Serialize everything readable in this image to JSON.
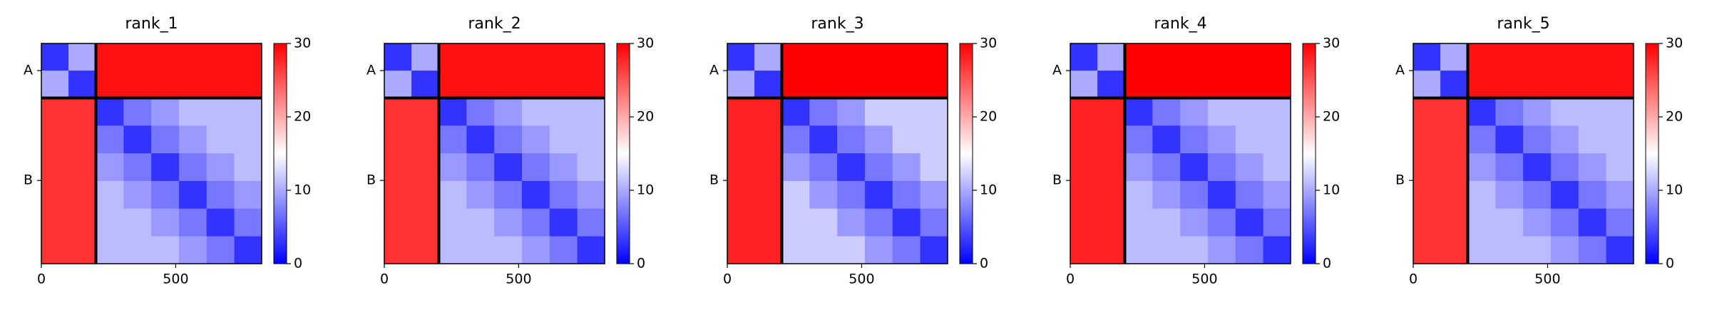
{
  "chart_data": [
    {
      "type": "heatmap",
      "title": "rank_1",
      "colormap": "bwr",
      "x_edges": [
        0,
        101,
        203,
        306,
        409,
        512,
        615,
        718,
        820
      ],
      "y_edges": [
        0,
        101,
        203,
        306,
        409,
        512,
        615,
        718,
        820
      ],
      "values": [
        [
          3,
          10,
          29,
          29,
          29,
          29,
          29,
          29
        ],
        [
          10,
          3,
          29,
          29,
          29,
          29,
          29,
          29
        ],
        [
          27,
          27,
          3,
          7,
          9,
          11,
          11,
          11
        ],
        [
          27,
          27,
          7,
          3,
          7,
          9,
          11,
          11
        ],
        [
          27,
          27,
          9,
          7,
          3,
          7,
          9,
          11
        ],
        [
          27,
          27,
          11,
          9,
          7,
          3,
          7,
          9
        ],
        [
          27,
          27,
          11,
          11,
          9,
          7,
          3,
          7
        ],
        [
          27,
          27,
          11,
          11,
          11,
          9,
          7,
          3
        ]
      ],
      "boundaries": [
        203
      ],
      "xlim": [
        0,
        820
      ],
      "xticks": [
        0,
        500
      ],
      "ylim": [
        820,
        0
      ],
      "yticks": [
        {
          "value": 101,
          "label": "A"
        },
        {
          "value": 510,
          "label": "B"
        }
      ],
      "clim": [
        0,
        30
      ],
      "cticks": [
        0,
        10,
        20,
        30
      ]
    },
    {
      "type": "heatmap",
      "title": "rank_2",
      "colormap": "bwr",
      "x_edges": [
        0,
        101,
        203,
        306,
        409,
        512,
        615,
        718,
        820
      ],
      "y_edges": [
        0,
        101,
        203,
        306,
        409,
        512,
        615,
        718,
        820
      ],
      "values": [
        [
          3,
          10,
          29,
          29,
          29,
          29,
          29,
          29
        ],
        [
          10,
          3,
          29,
          29,
          29,
          29,
          29,
          29
        ],
        [
          27,
          27,
          3,
          7,
          9,
          11,
          11,
          11
        ],
        [
          27,
          27,
          7,
          3,
          7,
          9,
          11,
          11
        ],
        [
          27,
          27,
          9,
          7,
          3,
          7,
          9,
          11
        ],
        [
          27,
          27,
          11,
          9,
          7,
          3,
          7,
          9
        ],
        [
          27,
          27,
          11,
          11,
          9,
          7,
          3,
          7
        ],
        [
          27,
          27,
          11,
          11,
          11,
          9,
          7,
          3
        ]
      ],
      "boundaries": [
        203
      ],
      "xlim": [
        0,
        820
      ],
      "xticks": [
        0,
        500
      ],
      "ylim": [
        820,
        0
      ],
      "yticks": [
        {
          "value": 101,
          "label": "A"
        },
        {
          "value": 510,
          "label": "B"
        }
      ],
      "clim": [
        0,
        30
      ],
      "cticks": [
        0,
        10,
        20,
        30
      ]
    },
    {
      "type": "heatmap",
      "title": "rank_3",
      "colormap": "bwr",
      "x_edges": [
        0,
        101,
        203,
        306,
        409,
        512,
        615,
        718,
        820
      ],
      "y_edges": [
        0,
        101,
        203,
        306,
        409,
        512,
        615,
        718,
        820
      ],
      "values": [
        [
          3,
          10,
          30,
          30,
          30,
          30,
          30,
          30
        ],
        [
          10,
          3,
          30,
          30,
          30,
          30,
          30,
          30
        ],
        [
          28,
          28,
          3,
          7,
          9,
          12,
          12,
          12
        ],
        [
          28,
          28,
          7,
          3,
          7,
          9,
          12,
          12
        ],
        [
          28,
          28,
          9,
          7,
          3,
          7,
          9,
          12
        ],
        [
          28,
          28,
          12,
          9,
          7,
          3,
          7,
          9
        ],
        [
          28,
          28,
          12,
          12,
          9,
          7,
          3,
          7
        ],
        [
          28,
          28,
          12,
          12,
          12,
          9,
          7,
          3
        ]
      ],
      "boundaries": [
        203
      ],
      "xlim": [
        0,
        820
      ],
      "xticks": [
        0,
        500
      ],
      "ylim": [
        820,
        0
      ],
      "yticks": [
        {
          "value": 101,
          "label": "A"
        },
        {
          "value": 510,
          "label": "B"
        }
      ],
      "clim": [
        0,
        30
      ],
      "cticks": [
        0,
        10,
        20,
        30
      ]
    },
    {
      "type": "heatmap",
      "title": "rank_4",
      "colormap": "bwr",
      "x_edges": [
        0,
        101,
        203,
        306,
        409,
        512,
        615,
        718,
        820
      ],
      "y_edges": [
        0,
        101,
        203,
        306,
        409,
        512,
        615,
        718,
        820
      ],
      "values": [
        [
          3,
          10,
          30,
          30,
          30,
          30,
          30,
          30
        ],
        [
          10,
          3,
          30,
          30,
          30,
          30,
          30,
          30
        ],
        [
          28,
          28,
          3,
          7,
          9,
          11,
          11,
          11
        ],
        [
          28,
          28,
          7,
          3,
          7,
          9,
          11,
          11
        ],
        [
          28,
          28,
          9,
          7,
          3,
          7,
          9,
          11
        ],
        [
          28,
          28,
          11,
          9,
          7,
          3,
          7,
          9
        ],
        [
          28,
          28,
          11,
          11,
          9,
          7,
          3,
          7
        ],
        [
          28,
          28,
          11,
          11,
          11,
          9,
          7,
          3
        ]
      ],
      "boundaries": [
        203
      ],
      "xlim": [
        0,
        820
      ],
      "xticks": [
        0,
        500
      ],
      "ylim": [
        820,
        0
      ],
      "yticks": [
        {
          "value": 101,
          "label": "A"
        },
        {
          "value": 510,
          "label": "B"
        }
      ],
      "clim": [
        0,
        30
      ],
      "cticks": [
        0,
        10,
        20,
        30
      ]
    },
    {
      "type": "heatmap",
      "title": "rank_5",
      "colormap": "bwr",
      "x_edges": [
        0,
        101,
        203,
        306,
        409,
        512,
        615,
        718,
        820
      ],
      "y_edges": [
        0,
        101,
        203,
        306,
        409,
        512,
        615,
        718,
        820
      ],
      "values": [
        [
          3,
          10,
          29,
          29,
          29,
          29,
          29,
          29
        ],
        [
          10,
          3,
          29,
          29,
          29,
          29,
          29,
          29
        ],
        [
          27,
          27,
          3,
          7,
          9,
          11,
          11,
          11
        ],
        [
          27,
          27,
          7,
          3,
          7,
          9,
          11,
          11
        ],
        [
          27,
          27,
          9,
          7,
          3,
          7,
          9,
          11
        ],
        [
          27,
          27,
          11,
          9,
          7,
          3,
          7,
          9
        ],
        [
          27,
          27,
          11,
          11,
          9,
          7,
          3,
          7
        ],
        [
          27,
          27,
          11,
          11,
          11,
          9,
          7,
          3
        ]
      ],
      "boundaries": [
        203
      ],
      "xlim": [
        0,
        820
      ],
      "xticks": [
        0,
        500
      ],
      "ylim": [
        820,
        0
      ],
      "yticks": [
        {
          "value": 101,
          "label": "A"
        },
        {
          "value": 510,
          "label": "B"
        }
      ],
      "clim": [
        0,
        30
      ],
      "cticks": [
        0,
        10,
        20,
        30
      ]
    }
  ]
}
